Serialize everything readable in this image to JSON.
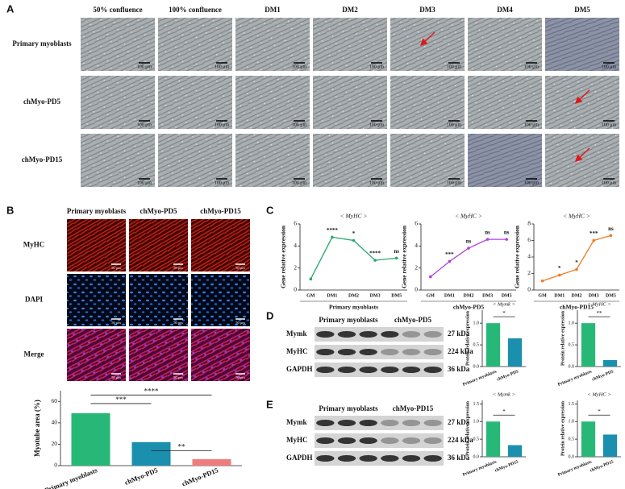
{
  "panel_a": {
    "label": "A",
    "columns": [
      "50% confluence",
      "100% confluence",
      "DM1",
      "DM2",
      "DM3",
      "DM4",
      "DM5"
    ],
    "rows": [
      "Primary myoblasts",
      "chMyo-PD5",
      "chMyo-PD15"
    ],
    "scale_bar": "100 μm"
  },
  "panel_b": {
    "label": "B",
    "columns": [
      "Primary myoblasts",
      "chMyo-PD5",
      "chMyo-PD15"
    ],
    "rows": [
      "MyHC",
      "DAPI",
      "Merge"
    ],
    "scale_bar": "50 μm"
  },
  "panel_c": {
    "label": "C"
  },
  "blots": [
    {
      "label": "D",
      "groups": [
        "Primary myoblasts",
        "chMyo-PD5"
      ],
      "rows": [
        "Mymk",
        "MyHC",
        "GAPDH"
      ],
      "sizes": [
        "27 kDa",
        "224 kDa",
        "36 kDa"
      ]
    },
    {
      "label": "E",
      "groups": [
        "Primary myoblasts",
        "chMyo-PD15"
      ],
      "rows": [
        "Mymk",
        "MyHC",
        "GAPDH"
      ],
      "sizes": [
        "27 kDa",
        "224 kDa",
        "36 kDa"
      ]
    }
  ],
  "chart_data": [
    {
      "type": "bar",
      "ylabel": "Myotube area (%)",
      "categories": [
        "Primary myoblasts",
        "chMyo-PD5",
        "chMyo-PD15"
      ],
      "values": [
        49,
        22,
        6
      ],
      "colors": [
        "#27b877",
        "#1b8fae",
        "#ee7d7d"
      ],
      "ylim": [
        0,
        70
      ],
      "yticks": [
        0,
        20,
        40,
        60
      ],
      "annotations": [
        "***",
        "****",
        "**"
      ]
    },
    {
      "type": "line",
      "title": "< MyHC >",
      "ylabel": "Gene relative expression",
      "xlabel": "Primary myoblasts",
      "categories": [
        "GM",
        "DM1",
        "DM2",
        "DM3",
        "DM5"
      ],
      "values": [
        1,
        4.8,
        4.5,
        2.7,
        2.9
      ],
      "color": "#27a86e",
      "ylim": [
        0,
        6
      ],
      "yticks": [
        0,
        2,
        4,
        6
      ],
      "annotations": [
        null,
        "****",
        "*",
        "****",
        "ns"
      ]
    },
    {
      "type": "line",
      "title": "< MyHC >",
      "ylabel": "Gene relative expression",
      "xlabel": "chMyo-PD5",
      "categories": [
        "GM",
        "DM1",
        "DM2",
        "DM3",
        "DM5"
      ],
      "values": [
        1.2,
        2.6,
        3.8,
        4.6,
        4.6
      ],
      "color": "#b040e0",
      "ylim": [
        0,
        6
      ],
      "yticks": [
        0,
        2,
        4,
        6
      ],
      "annotations": [
        null,
        "***",
        "ns",
        "ns",
        "ns"
      ]
    },
    {
      "type": "line",
      "title": "< MyHC >",
      "ylabel": "Gene relative expression",
      "xlabel": "chMyo-PD15",
      "categories": [
        "GM",
        "DM1",
        "DM2",
        "DM3",
        "DM5"
      ],
      "values": [
        1.1,
        1.8,
        2.5,
        6.0,
        6.6
      ],
      "color": "#f07a20",
      "ylim": [
        0,
        8
      ],
      "yticks": [
        0,
        2,
        4,
        6,
        8
      ],
      "annotations": [
        null,
        "*",
        "*",
        "***",
        "ns"
      ]
    },
    {
      "type": "bar",
      "title": "< Mymk >",
      "ylabel": "Protein relative expression",
      "categories": [
        "Primary myoblasts",
        "chMyo-PD5"
      ],
      "values": [
        1.0,
        0.65
      ],
      "colors": [
        "#27b877",
        "#1b8fae"
      ],
      "ylim": [
        0,
        1.3
      ],
      "yticks": [
        {
          "value": 0,
          "label": "0.0"
        },
        {
          "value": 0.5,
          "label": "0.5"
        },
        {
          "value": 1,
          "label": "1.0"
        }
      ],
      "annotations": [
        "*"
      ]
    },
    {
      "type": "bar",
      "title": "< MyHC >",
      "ylabel": "Protein relative expression",
      "categories": [
        "Primary myoblasts",
        "chMyo-PD5"
      ],
      "values": [
        1.0,
        0.15
      ],
      "colors": [
        "#27b877",
        "#1b8fae"
      ],
      "ylim": [
        0,
        1.3
      ],
      "yticks": [
        {
          "value": 0,
          "label": "0.0"
        },
        {
          "value": 0.5,
          "label": "0.5"
        },
        {
          "value": 1,
          "label": "1.0"
        }
      ],
      "annotations": [
        "**"
      ]
    },
    {
      "type": "bar",
      "title": "< Mymk >",
      "ylabel": "Protein relative expression",
      "categories": [
        "Primary myoblasts",
        "chMyo-PD15"
      ],
      "values": [
        1.0,
        0.33
      ],
      "colors": [
        "#27b877",
        "#1b8fae"
      ],
      "ylim": [
        0,
        1.6
      ],
      "yticks": [
        {
          "value": 0,
          "label": "0.0"
        },
        {
          "value": 0.5,
          "label": "0.5"
        },
        {
          "value": 1,
          "label": "1.0"
        },
        {
          "value": 1.5,
          "label": "1.5"
        }
      ],
      "annotations": [
        "*"
      ]
    },
    {
      "type": "bar",
      "title": "< MyHC >",
      "ylabel": "Protein relative expression",
      "categories": [
        "Primary myoblasts",
        "chMyo-PD15"
      ],
      "values": [
        1.0,
        0.63
      ],
      "colors": [
        "#27b877",
        "#1b8fae"
      ],
      "ylim": [
        0,
        1.6
      ],
      "yticks": [
        {
          "value": 0,
          "label": "0.0"
        },
        {
          "value": 0.5,
          "label": "0.5"
        },
        {
          "value": 1,
          "label": "1.0"
        },
        {
          "value": 1.5,
          "label": "1.5"
        }
      ],
      "annotations": [
        "*"
      ]
    }
  ]
}
